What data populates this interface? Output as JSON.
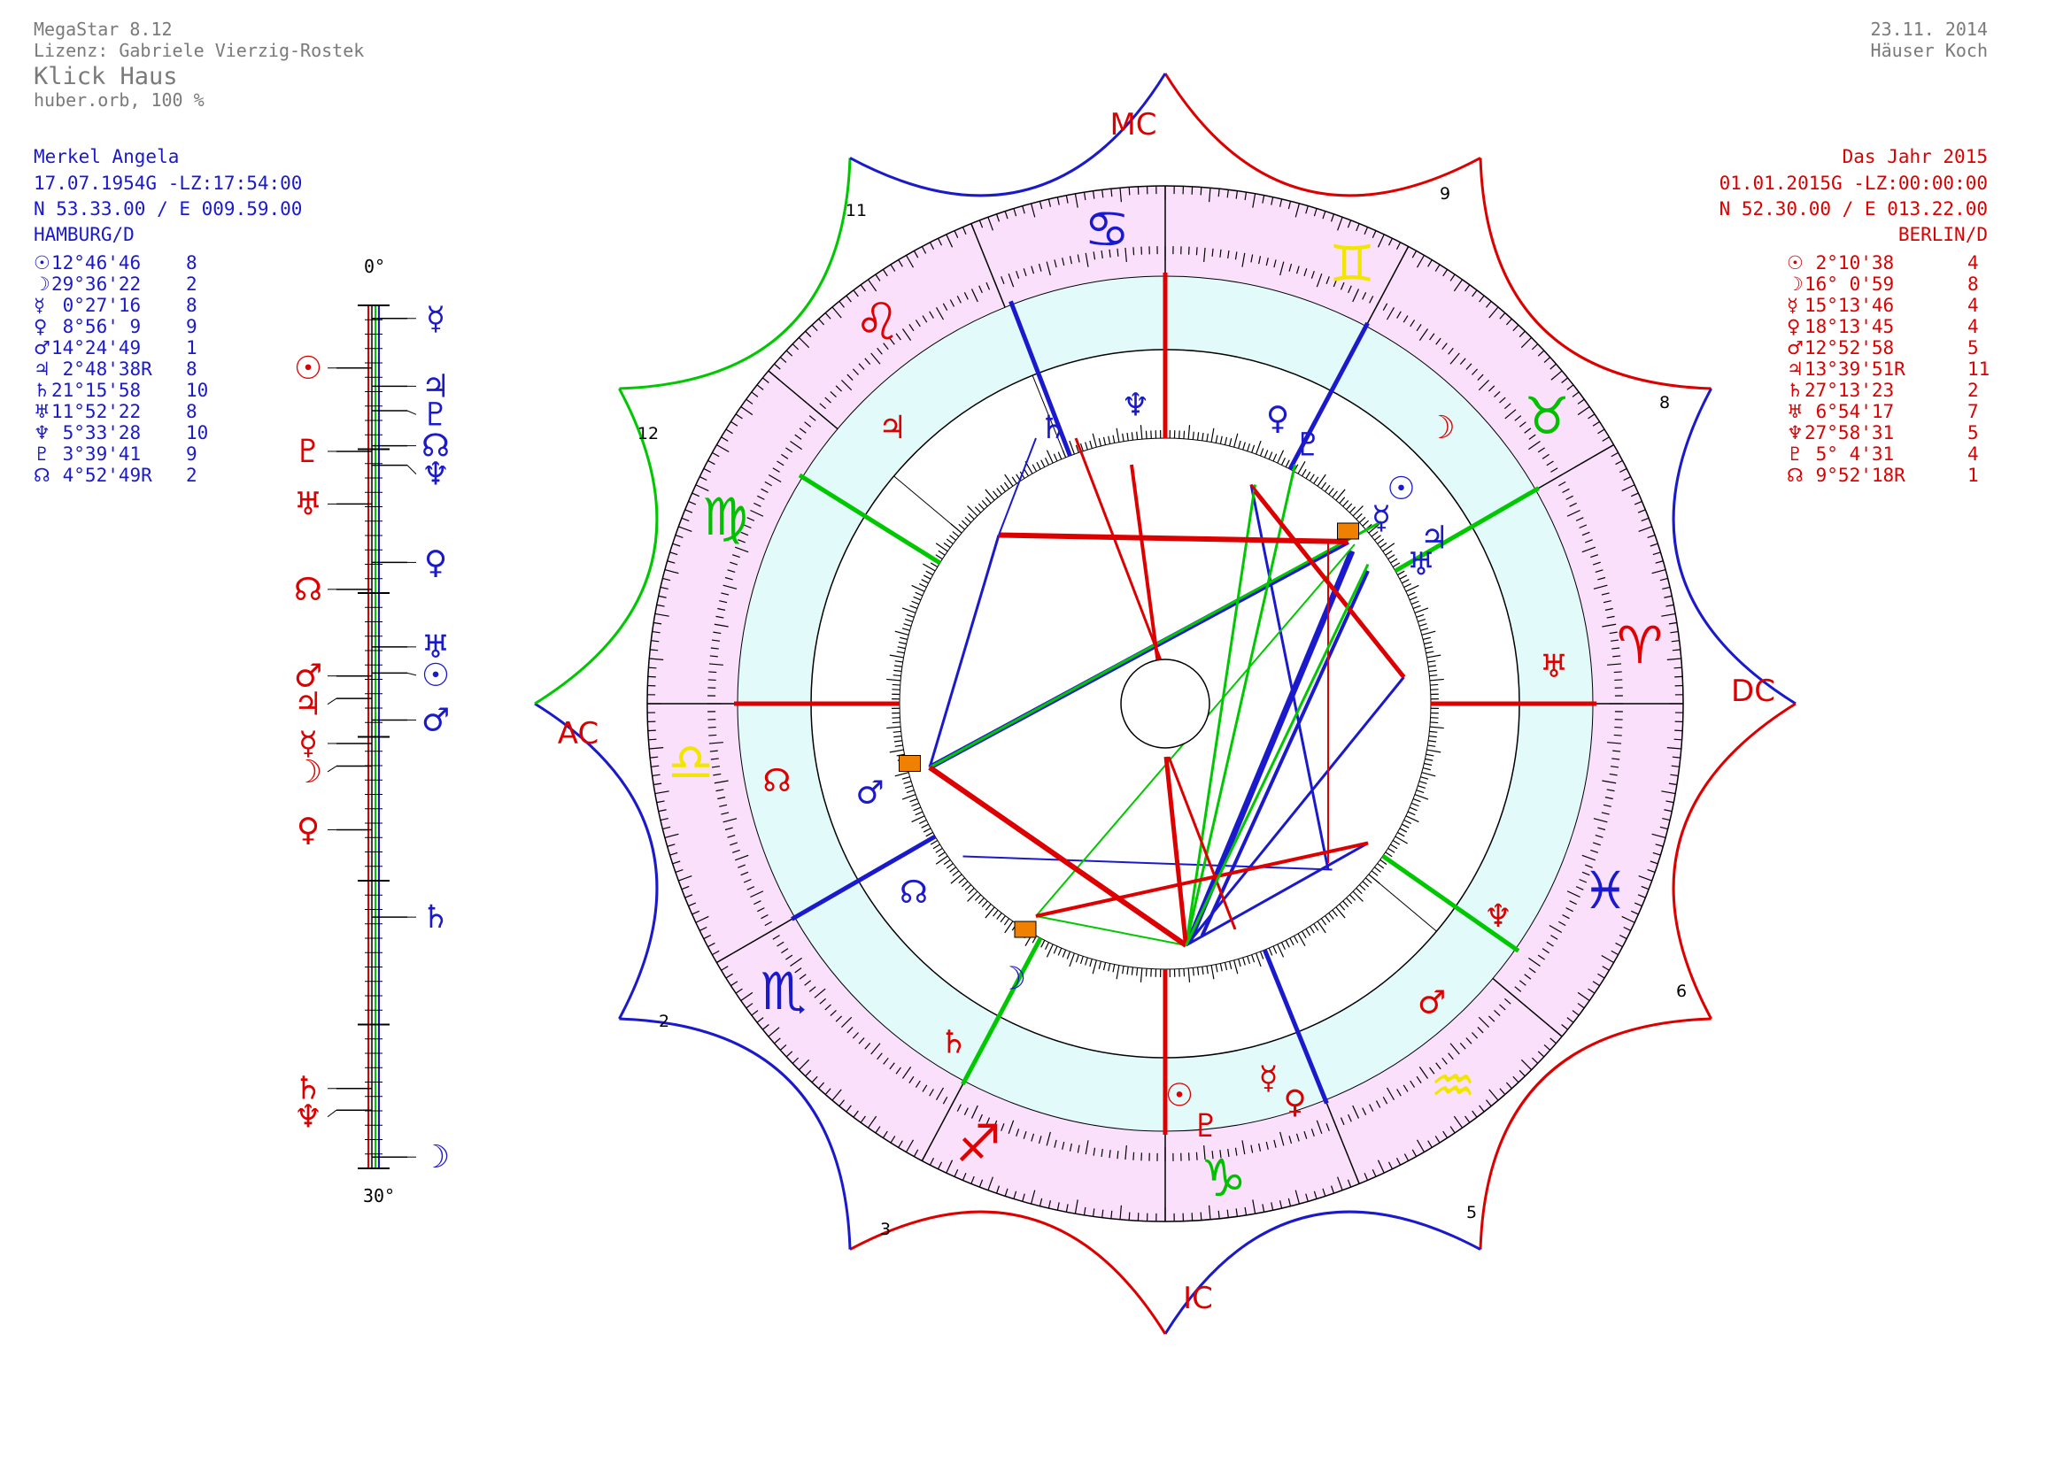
{
  "header": {
    "program": "MegaStar 8.12",
    "license": "Lizenz: Gabriele Vierzig-Rostek",
    "mode": "Klick Haus",
    "orb": "huber.orb,  100  %",
    "date": "23.11. 2014",
    "house_system": "Häuser Koch"
  },
  "natal": {
    "name": "Merkel Angela",
    "date": "17.07.1954G -LZ:17:54:00",
    "coords": "N 53.33.00 / E 009.59.00",
    "place": "HAMBURG/D",
    "planets": [
      {
        "glyph": "☉",
        "position": "12°46'46",
        "house": "8"
      },
      {
        "glyph": "☽",
        "position": "29°36'22",
        "house": "2"
      },
      {
        "glyph": "☿",
        "position": " 0°27'16",
        "house": "8"
      },
      {
        "glyph": "♀",
        "position": " 8°56' 9",
        "house": "9"
      },
      {
        "glyph": "♂",
        "position": "14°24'49",
        "house": "1"
      },
      {
        "glyph": "♃",
        "position": " 2°48'38R",
        "house": "8"
      },
      {
        "glyph": "♄",
        "position": "21°15'58",
        "house": "10"
      },
      {
        "glyph": "♅",
        "position": "11°52'22",
        "house": "8"
      },
      {
        "glyph": "♆",
        "position": " 5°33'28",
        "house": "10"
      },
      {
        "glyph": "♇",
        "position": " 3°39'41",
        "house": "9"
      },
      {
        "glyph": "☊",
        "position": " 4°52'49R",
        "house": "2"
      }
    ]
  },
  "transit": {
    "name": "Das Jahr 2015",
    "date": "01.01.2015G -LZ:00:00:00",
    "coords": "N 52.30.00 / E 013.22.00",
    "place": "BERLIN/D",
    "planets": [
      {
        "glyph": "☉",
        "position": " 2°10'38",
        "house": "4"
      },
      {
        "glyph": "☽",
        "position": "16° 0'59",
        "house": "8"
      },
      {
        "glyph": "☿",
        "position": "15°13'46",
        "house": "4"
      },
      {
        "glyph": "♀",
        "position": "18°13'45",
        "house": "4"
      },
      {
        "glyph": "♂",
        "position": "12°52'58",
        "house": "5"
      },
      {
        "glyph": "♃",
        "position": "13°39'51R",
        "house": "11"
      },
      {
        "glyph": "♄",
        "position": "27°13'23",
        "house": "2"
      },
      {
        "glyph": "♅",
        "position": " 6°54'17",
        "house": "7"
      },
      {
        "glyph": "♆",
        "position": "27°58'31",
        "house": "5"
      },
      {
        "glyph": "♇",
        "position": " 5° 4'31",
        "house": "4"
      },
      {
        "glyph": "☊",
        "position": " 9°52'18R",
        "house": "1"
      }
    ]
  },
  "dial": {
    "top": "0°",
    "bottom": "30°"
  },
  "wheel": {
    "angles": {
      "mc": "MC",
      "ac": "AC",
      "dc": "DC",
      "ic": "IC"
    },
    "houses": [
      "11",
      "9",
      "12",
      "8",
      "2",
      "6",
      "3",
      "5"
    ],
    "signs": [
      {
        "glyph": "♈",
        "color": "#e00000"
      },
      {
        "glyph": "♉",
        "color": "#00c000"
      },
      {
        "glyph": "♊",
        "color": "#f2e600"
      },
      {
        "glyph": "♋",
        "color": "#1a1acc"
      },
      {
        "glyph": "♌",
        "color": "#e00000"
      },
      {
        "glyph": "♍",
        "color": "#00c000"
      },
      {
        "glyph": "♎",
        "color": "#f2e600"
      },
      {
        "glyph": "♏",
        "color": "#1a1acc"
      },
      {
        "glyph": "♐",
        "color": "#e00000"
      },
      {
        "glyph": "♑",
        "color": "#00c000"
      },
      {
        "glyph": "♒",
        "color": "#f2e600"
      },
      {
        "glyph": "♓",
        "color": "#1a1acc"
      }
    ]
  }
}
